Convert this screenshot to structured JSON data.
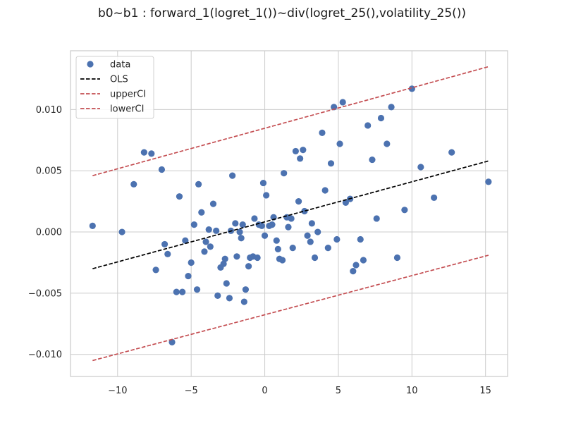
{
  "chart_data": {
    "type": "scatter",
    "title": "b0~b1 : forward_1(logret_1())~div(logret_25(),volatility_25())",
    "xlabel": "",
    "ylabel": "",
    "xlim": [
      -13.2,
      16.5
    ],
    "ylim": [
      -0.0118,
      0.0148
    ],
    "x_ticks": [
      -10,
      -5,
      0,
      5,
      10,
      15
    ],
    "x_tick_labels": [
      "−10",
      "−5",
      "0",
      "5",
      "10",
      "15"
    ],
    "y_ticks": [
      -0.01,
      -0.005,
      0.0,
      0.005,
      0.01
    ],
    "y_tick_labels": [
      "−0.010",
      "−0.005",
      "0.000",
      "0.005",
      "0.010"
    ],
    "grid": true,
    "legend_position": "top-left",
    "colors": {
      "data": "#4c72b0",
      "ols": "#000000",
      "ci": "#c44e52",
      "grid": "#cccccc",
      "frame": "#cccccc"
    },
    "series": [
      {
        "name": "data",
        "kind": "scatter",
        "points": [
          [
            -11.7,
            0.0005
          ],
          [
            -9.7,
            0.0
          ],
          [
            -8.9,
            0.0039
          ],
          [
            -8.2,
            0.0065
          ],
          [
            -7.7,
            0.0064
          ],
          [
            -7.4,
            -0.0031
          ],
          [
            -7.0,
            0.0051
          ],
          [
            -6.8,
            -0.001
          ],
          [
            -6.6,
            -0.0018
          ],
          [
            -6.3,
            -0.009
          ],
          [
            -6.0,
            -0.0049
          ],
          [
            -5.8,
            0.0029
          ],
          [
            -5.6,
            -0.0049
          ],
          [
            -5.4,
            -0.0007
          ],
          [
            -5.2,
            -0.0036
          ],
          [
            -5.0,
            -0.0025
          ],
          [
            -4.8,
            0.0006
          ],
          [
            -4.6,
            -0.0047
          ],
          [
            -4.5,
            0.0039
          ],
          [
            -4.3,
            0.0016
          ],
          [
            -4.1,
            -0.0016
          ],
          [
            -4.0,
            -0.0008
          ],
          [
            -3.8,
            0.0002
          ],
          [
            -3.7,
            -0.0012
          ],
          [
            -3.5,
            0.0023
          ],
          [
            -3.3,
            0.0001
          ],
          [
            -3.2,
            -0.0052
          ],
          [
            -3.0,
            -0.0029
          ],
          [
            -2.8,
            -0.0026
          ],
          [
            -2.7,
            -0.0022
          ],
          [
            -2.6,
            -0.0042
          ],
          [
            -2.4,
            -0.0054
          ],
          [
            -2.3,
            0.0001
          ],
          [
            -2.2,
            0.0046
          ],
          [
            -2.0,
            0.0007
          ],
          [
            -1.9,
            -0.002
          ],
          [
            -1.7,
            0.0
          ],
          [
            -1.6,
            -0.0005
          ],
          [
            -1.5,
            0.0006
          ],
          [
            -1.4,
            -0.0057
          ],
          [
            -1.3,
            -0.0047
          ],
          [
            -1.1,
            -0.0028
          ],
          [
            -1.0,
            -0.0021
          ],
          [
            -0.8,
            -0.002
          ],
          [
            -0.7,
            0.0011
          ],
          [
            -0.5,
            -0.0021
          ],
          [
            -0.4,
            0.0006
          ],
          [
            -0.2,
            0.0005
          ],
          [
            -0.1,
            0.004
          ],
          [
            0.0,
            -0.0003
          ],
          [
            0.1,
            0.003
          ],
          [
            0.3,
            0.0005
          ],
          [
            0.5,
            0.0006
          ],
          [
            0.6,
            0.0012
          ],
          [
            0.8,
            -0.0007
          ],
          [
            0.9,
            -0.0014
          ],
          [
            1.0,
            -0.0022
          ],
          [
            1.2,
            -0.0023
          ],
          [
            1.3,
            0.0048
          ],
          [
            1.5,
            0.0012
          ],
          [
            1.6,
            0.0004
          ],
          [
            1.8,
            0.0011
          ],
          [
            1.9,
            -0.0013
          ],
          [
            2.1,
            0.0066
          ],
          [
            2.3,
            0.0025
          ],
          [
            2.4,
            0.006
          ],
          [
            2.6,
            0.0067
          ],
          [
            2.7,
            0.0017
          ],
          [
            2.9,
            -0.0003
          ],
          [
            3.1,
            -0.0008
          ],
          [
            3.2,
            0.0007
          ],
          [
            3.4,
            -0.0021
          ],
          [
            3.6,
            0.0
          ],
          [
            3.9,
            0.0081
          ],
          [
            4.1,
            0.0034
          ],
          [
            4.3,
            -0.0013
          ],
          [
            4.5,
            0.0056
          ],
          [
            4.7,
            0.0102
          ],
          [
            4.9,
            -0.0006
          ],
          [
            5.1,
            0.0072
          ],
          [
            5.3,
            0.0106
          ],
          [
            5.5,
            0.0024
          ],
          [
            5.8,
            0.0027
          ],
          [
            6.0,
            -0.0032
          ],
          [
            6.2,
            -0.0027
          ],
          [
            6.5,
            -0.0006
          ],
          [
            6.7,
            -0.0023
          ],
          [
            7.0,
            0.0087
          ],
          [
            7.3,
            0.0059
          ],
          [
            7.6,
            0.0011
          ],
          [
            7.9,
            0.0093
          ],
          [
            8.3,
            0.0072
          ],
          [
            8.6,
            0.0102
          ],
          [
            9.0,
            -0.0021
          ],
          [
            9.5,
            0.0018
          ],
          [
            10.0,
            0.0117
          ],
          [
            10.6,
            0.0053
          ],
          [
            11.5,
            0.0028
          ],
          [
            12.7,
            0.0065
          ],
          [
            15.2,
            0.0041
          ]
        ]
      },
      {
        "name": "OLS",
        "kind": "dashed-line",
        "x": [
          -11.7,
          15.2
        ],
        "y": [
          -0.003,
          0.0058
        ]
      },
      {
        "name": "upperCI",
        "kind": "dashed-line",
        "x": [
          -11.7,
          15.2
        ],
        "y": [
          0.0046,
          0.0135
        ]
      },
      {
        "name": "lowerCI",
        "kind": "dashed-line",
        "x": [
          -11.7,
          15.2
        ],
        "y": [
          -0.0105,
          -0.0019
        ]
      }
    ]
  }
}
